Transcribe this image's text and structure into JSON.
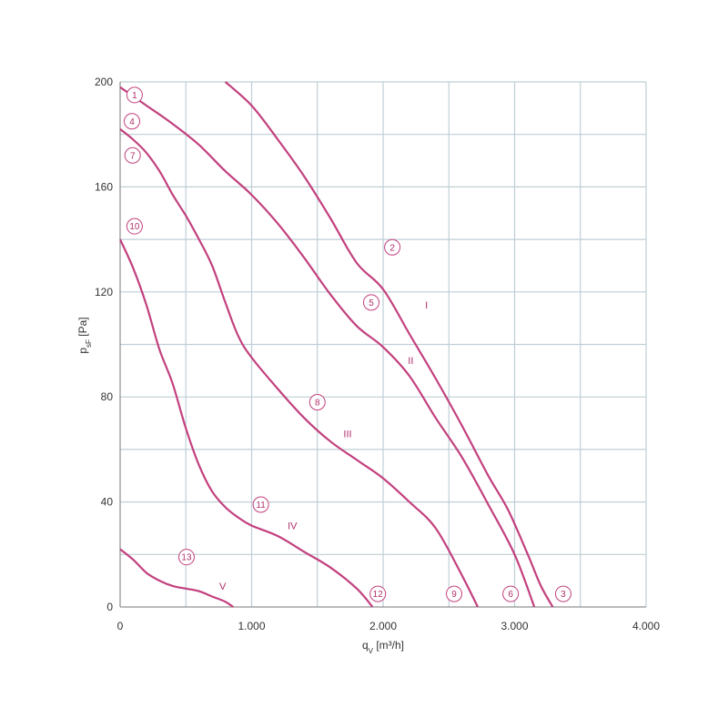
{
  "chart_data": {
    "type": "line",
    "xlabel": "q",
    "xlabel_sub": "V",
    "xlabel_unit": " [m³/h]",
    "ylabel": "p",
    "ylabel_sub": "sF",
    "ylabel_unit": " [Pa]",
    "xlim": [
      0,
      4000
    ],
    "ylim": [
      0,
      200
    ],
    "grid": true,
    "x_ticks": [
      {
        "value": 0,
        "label": "0"
      },
      {
        "value": 1000,
        "label": "1.000"
      },
      {
        "value": 2000,
        "label": "2.000"
      },
      {
        "value": 3000,
        "label": "3.000"
      },
      {
        "value": 4000,
        "label": "4.000"
      }
    ],
    "y_ticks": [
      {
        "value": 0,
        "label": "0"
      },
      {
        "value": 40,
        "label": "40"
      },
      {
        "value": 80,
        "label": "80"
      },
      {
        "value": 120,
        "label": "120"
      },
      {
        "value": 160,
        "label": "160"
      },
      {
        "value": 200,
        "label": "200"
      }
    ],
    "colors": {
      "curve": "#c2407e",
      "grid": "#bfcfd6",
      "axis": "#777777"
    },
    "series": [
      {
        "name": "I",
        "points": [
          [
            800,
            200
          ],
          [
            1000,
            191
          ],
          [
            1200,
            178
          ],
          [
            1400,
            164
          ],
          [
            1600,
            148
          ],
          [
            1800,
            131
          ],
          [
            2000,
            121
          ],
          [
            2200,
            104
          ],
          [
            2400,
            87
          ],
          [
            2600,
            69
          ],
          [
            2800,
            50
          ],
          [
            2950,
            37
          ],
          [
            3100,
            20
          ],
          [
            3200,
            8
          ],
          [
            3290,
            0
          ]
        ]
      },
      {
        "name": "II",
        "points": [
          [
            0,
            198
          ],
          [
            200,
            191
          ],
          [
            400,
            184
          ],
          [
            600,
            176
          ],
          [
            800,
            166
          ],
          [
            1000,
            157
          ],
          [
            1200,
            146
          ],
          [
            1400,
            133
          ],
          [
            1600,
            119
          ],
          [
            1800,
            107
          ],
          [
            2000,
            99
          ],
          [
            2200,
            88
          ],
          [
            2400,
            72
          ],
          [
            2600,
            57
          ],
          [
            2800,
            39
          ],
          [
            3000,
            20
          ],
          [
            3150,
            0
          ]
        ]
      },
      {
        "name": "III",
        "points": [
          [
            0,
            182
          ],
          [
            100,
            178
          ],
          [
            200,
            173
          ],
          [
            300,
            166
          ],
          [
            400,
            157
          ],
          [
            500,
            149
          ],
          [
            600,
            140
          ],
          [
            700,
            130
          ],
          [
            800,
            116
          ],
          [
            900,
            103
          ],
          [
            1000,
            95
          ],
          [
            1200,
            83
          ],
          [
            1400,
            72
          ],
          [
            1600,
            63
          ],
          [
            1800,
            56
          ],
          [
            2000,
            49
          ],
          [
            2200,
            40
          ],
          [
            2400,
            30
          ],
          [
            2600,
            12
          ],
          [
            2720,
            0
          ]
        ]
      },
      {
        "name": "IV",
        "points": [
          [
            0,
            140
          ],
          [
            100,
            129
          ],
          [
            200,
            115
          ],
          [
            300,
            98
          ],
          [
            400,
            85
          ],
          [
            500,
            68
          ],
          [
            600,
            54
          ],
          [
            700,
            44
          ],
          [
            800,
            38
          ],
          [
            900,
            34
          ],
          [
            1000,
            31
          ],
          [
            1200,
            27
          ],
          [
            1400,
            21
          ],
          [
            1600,
            15
          ],
          [
            1800,
            7
          ],
          [
            1920,
            0
          ]
        ]
      },
      {
        "name": "V",
        "points": [
          [
            0,
            22
          ],
          [
            100,
            18
          ],
          [
            200,
            13
          ],
          [
            300,
            10
          ],
          [
            400,
            8
          ],
          [
            500,
            7
          ],
          [
            600,
            6
          ],
          [
            700,
            4
          ],
          [
            800,
            2
          ],
          [
            860,
            0
          ]
        ]
      }
    ],
    "markers": [
      {
        "label": "1",
        "x": 110,
        "y": 195
      },
      {
        "label": "2",
        "x": 2070,
        "y": 137
      },
      {
        "label": "3",
        "x": 3370,
        "y": 5
      },
      {
        "label": "4",
        "x": 90,
        "y": 185
      },
      {
        "label": "5",
        "x": 1910,
        "y": 116
      },
      {
        "label": "6",
        "x": 2970,
        "y": 5
      },
      {
        "label": "7",
        "x": 95,
        "y": 172
      },
      {
        "label": "8",
        "x": 1500,
        "y": 78
      },
      {
        "label": "9",
        "x": 2540,
        "y": 5
      },
      {
        "label": "10",
        "x": 110,
        "y": 145
      },
      {
        "label": "11",
        "x": 1070,
        "y": 39
      },
      {
        "label": "12",
        "x": 1960,
        "y": 5
      },
      {
        "label": "13",
        "x": 505,
        "y": 19
      }
    ],
    "curve_labels": [
      {
        "label": "I",
        "x": 2330,
        "y": 115
      },
      {
        "label": "II",
        "x": 2210,
        "y": 94
      },
      {
        "label": "III",
        "x": 1730,
        "y": 66
      },
      {
        "label": "IV",
        "x": 1310,
        "y": 31
      },
      {
        "label": "V",
        "x": 780,
        "y": 8
      }
    ]
  }
}
